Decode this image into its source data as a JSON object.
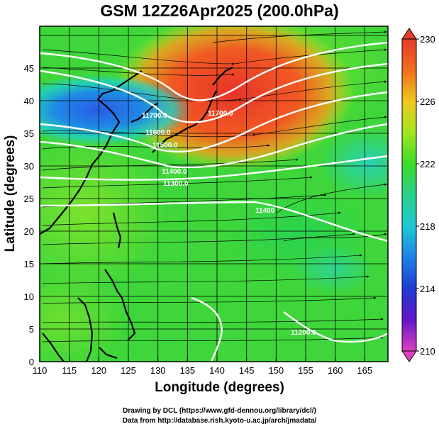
{
  "title": "GSM 12Z26Apr2025 (200.0hPa)",
  "xlabel": "Longitude (degrees)",
  "ylabel": "Latitude  (degrees)",
  "x_ticks": [
    "110",
    "115",
    "120",
    "125",
    "130",
    "135",
    "140",
    "145",
    "150",
    "155",
    "160",
    "165"
  ],
  "y_ticks": [
    "0",
    "5",
    "10",
    "15",
    "20",
    "25",
    "30",
    "35",
    "40",
    "45"
  ],
  "colorbar": {
    "ticks": [
      "230",
      "226",
      "222",
      "218",
      "214",
      "210"
    ],
    "min": 210,
    "max": 230,
    "colors": [
      "#e040c0",
      "#5a1ec8",
      "#1e3cd2",
      "#1e96e6",
      "#1ed2c8",
      "#1ee678",
      "#32d232",
      "#78e61e",
      "#c8e61e",
      "#f0c81e",
      "#f08c1e",
      "#e63c28"
    ]
  },
  "contour_labels": [
    "11700.0",
    "11700.0",
    "11600.0",
    "11500.0",
    "11400.0",
    "11400",
    "11300.0",
    "11200.0"
  ],
  "credits": {
    "line1": "Drawing by DCL (https://www.gfd-dennou.org/library/dcl/)",
    "line2": "Data from http://database.rish.kyoto-u.ac.jp/arch/jmadata/"
  },
  "chart_data": {
    "type": "heatmap",
    "title": "GSM 12Z26Apr2025 (200.0hPa)",
    "xlabel": "Longitude (degrees)",
    "ylabel": "Latitude  (degrees)",
    "xlim": [
      110,
      170
    ],
    "ylim": [
      0,
      50
    ],
    "colorbar_range": [
      210,
      230
    ],
    "grid": true,
    "features": [
      "temperature shading (K)",
      "wind streamlines",
      "geopotential height contours (m)"
    ],
    "warm_core": {
      "lon": 142,
      "lat": 43,
      "value": 229
    },
    "cold_core": {
      "lon": 118,
      "lat": 39,
      "value": 215
    }
  }
}
